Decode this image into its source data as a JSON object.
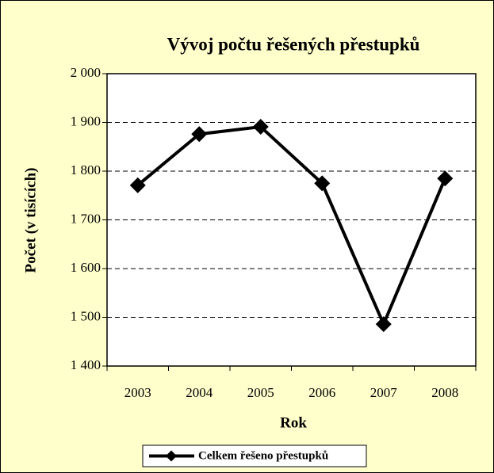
{
  "chart_data": {
    "type": "line",
    "title": "Vývoj počtu řešených přestupků",
    "xlabel": "Rok",
    "ylabel": "Počet (v tisících)",
    "categories": [
      "2003",
      "2004",
      "2005",
      "2006",
      "2007",
      "2008"
    ],
    "series": [
      {
        "name": "Celkem řešeno přestupků",
        "color": "#000000",
        "values": [
          1771,
          1876,
          1891,
          1775,
          1486,
          1785
        ]
      }
    ],
    "ylim": [
      1400,
      2000
    ],
    "yticks": [
      {
        "value": 1400,
        "label": "1 400"
      },
      {
        "value": 1500,
        "label": "1 500"
      },
      {
        "value": 1600,
        "label": "1 600"
      },
      {
        "value": 1700,
        "label": "1 700"
      },
      {
        "value": 1800,
        "label": "1 800"
      },
      {
        "value": 1900,
        "label": "1 900"
      },
      {
        "value": 2000,
        "label": "2 000"
      }
    ],
    "grid": true,
    "legend": "bottom"
  }
}
